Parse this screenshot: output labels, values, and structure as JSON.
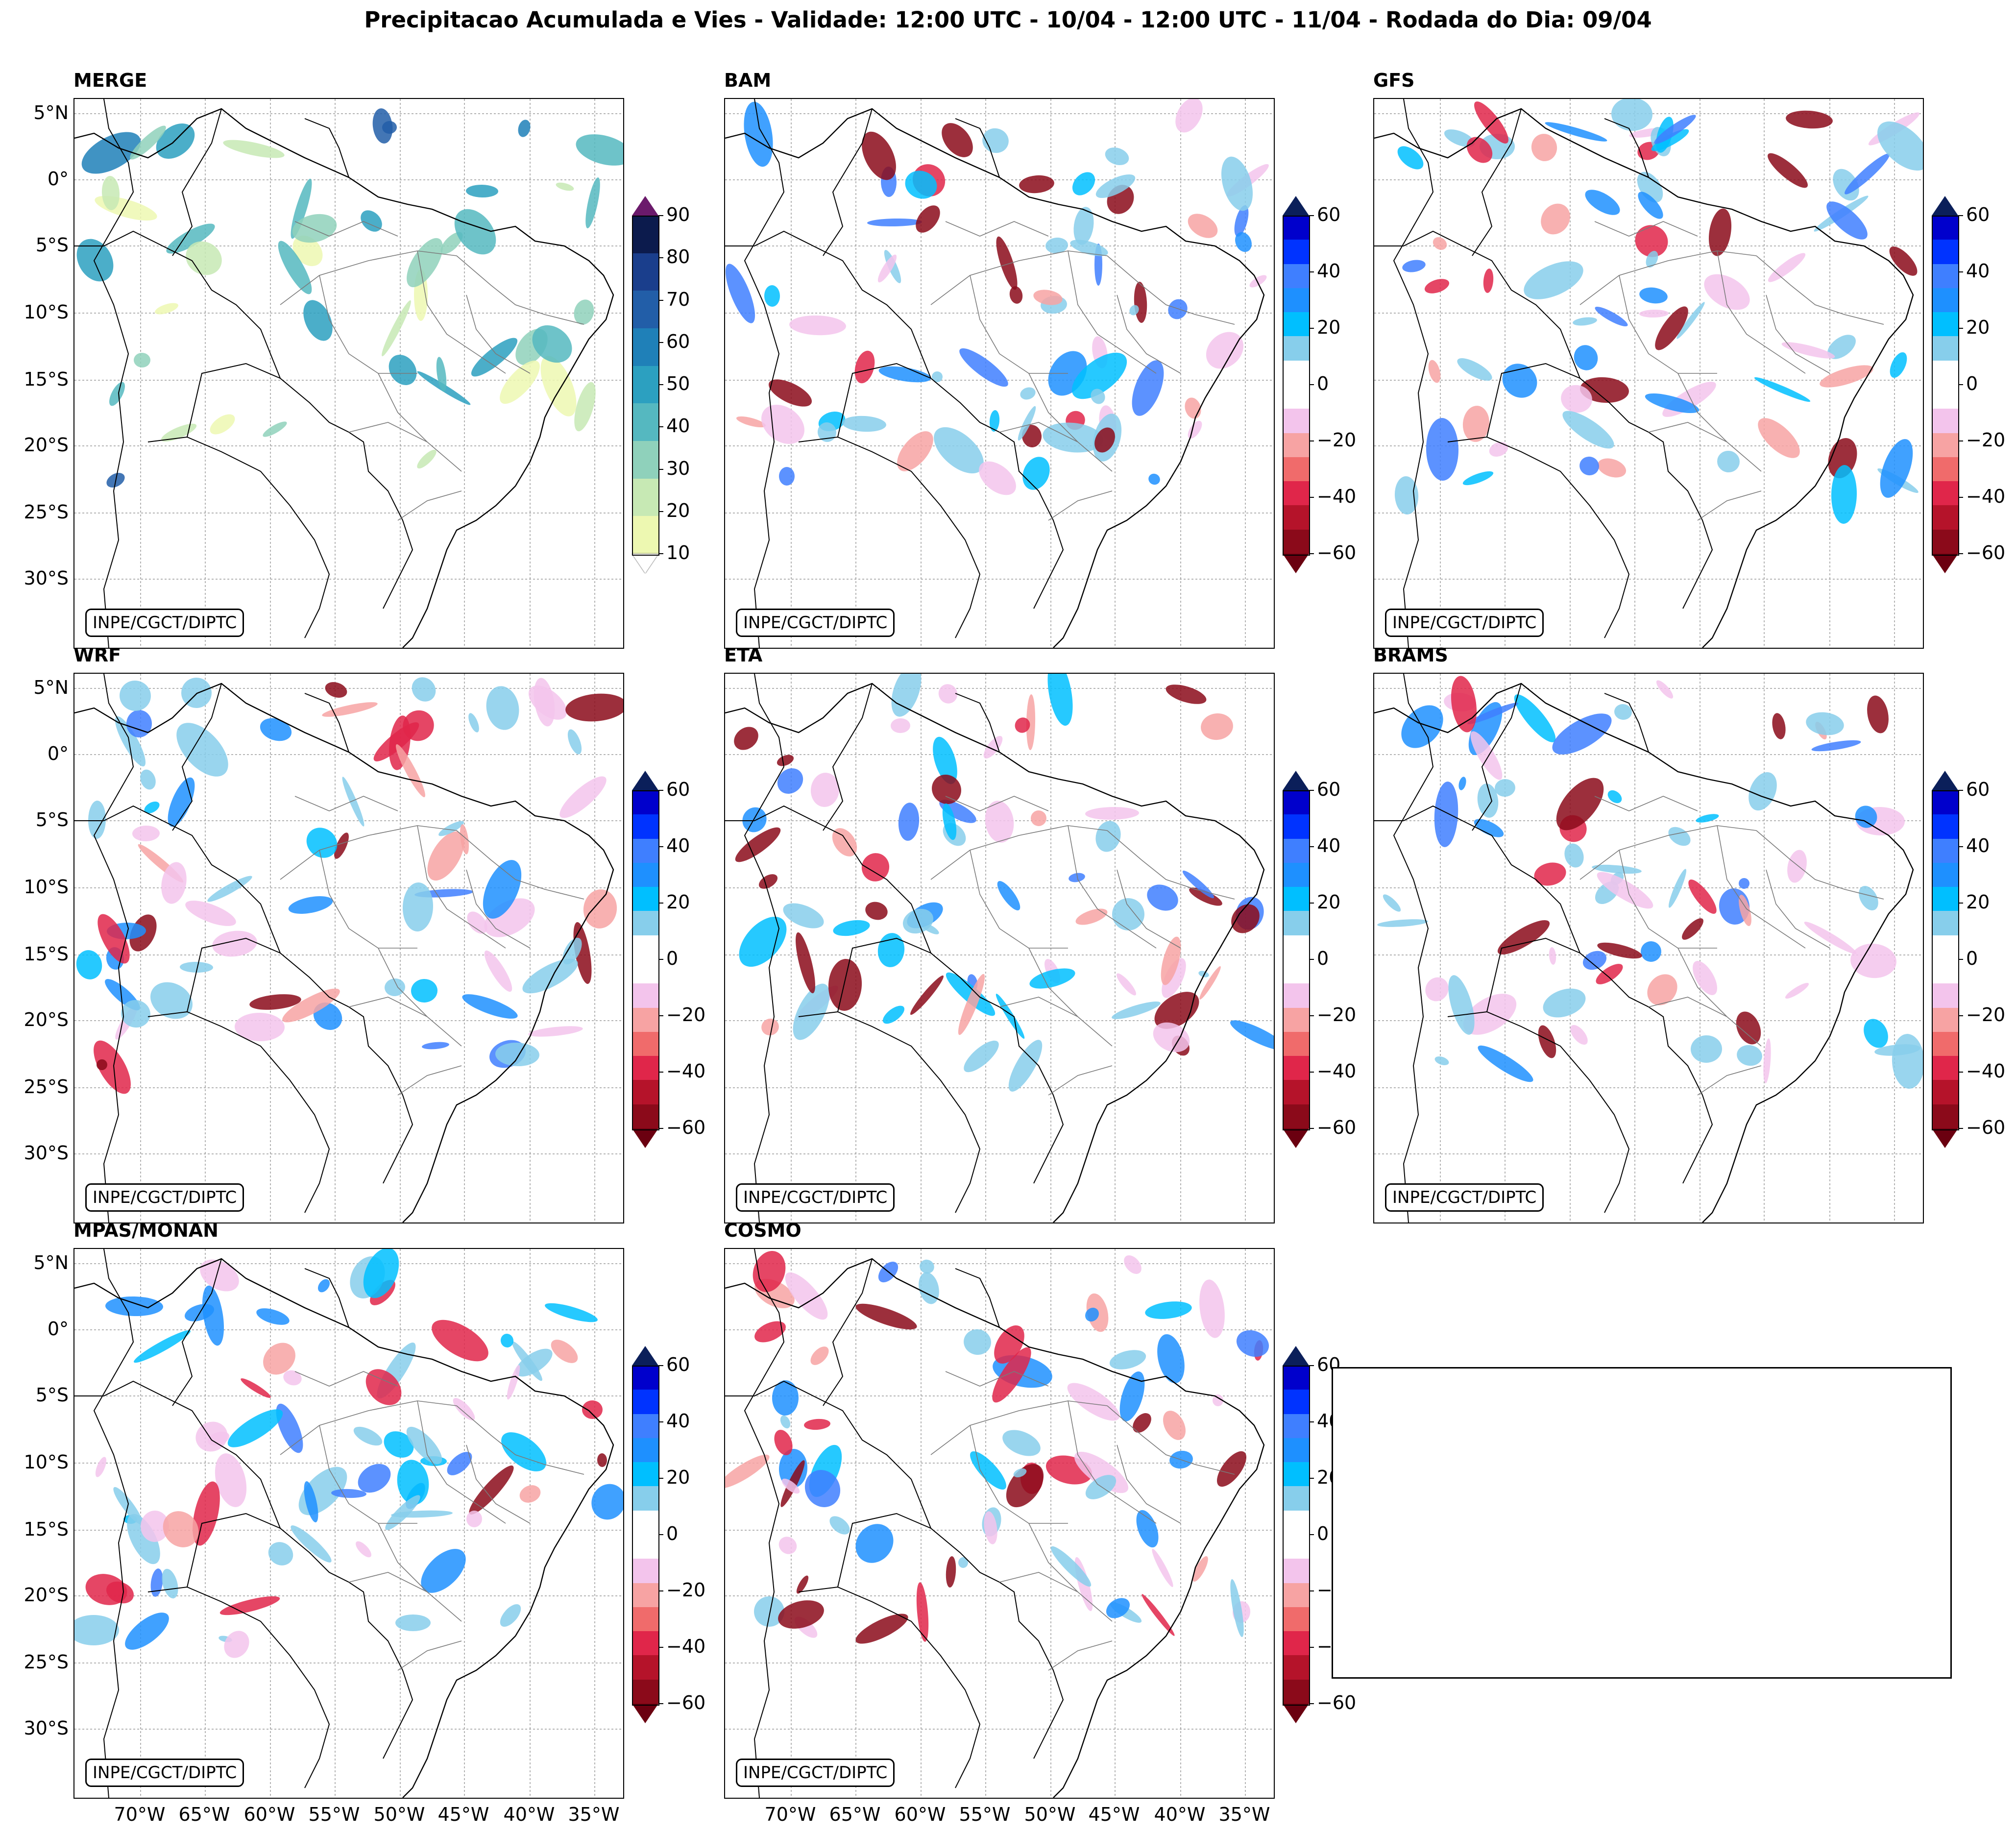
{
  "title": "Precipitacao Acumulada e Vies - Validade: 12:00 UTC - 10/04 - 12:00 UTC - 11/04 - Rodada do Dia: 09/04",
  "credit": "INPE/CGCT/DIPTC",
  "lat_labels": [
    "5°N",
    "0°",
    "5°S",
    "10°S",
    "15°S",
    "20°S",
    "25°S",
    "30°S"
  ],
  "lon_labels": [
    "70°W",
    "65°W",
    "60°W",
    "55°W",
    "50°W",
    "45°W",
    "40°W",
    "35°W"
  ],
  "panels": [
    {
      "name": "MERGE",
      "type": "precip"
    },
    {
      "name": "BAM",
      "type": "bias"
    },
    {
      "name": "GFS",
      "type": "bias"
    },
    {
      "name": "WRF",
      "type": "bias"
    },
    {
      "name": "ETA",
      "type": "bias"
    },
    {
      "name": "BRAMS",
      "type": "bias"
    },
    {
      "name": "MPAS/MONAN",
      "type": "bias"
    },
    {
      "name": "COSMO",
      "type": "bias"
    }
  ],
  "colorbar_precip": {
    "labels": [
      "90",
      "80",
      "70",
      "60",
      "50",
      "40",
      "30",
      "20",
      "10"
    ],
    "colors": [
      "#0c1b4d",
      "#1a3e8c",
      "#225ea8",
      "#1f80b8",
      "#2ca0c0",
      "#55b8c0",
      "#8fd1bb",
      "#c7e9b4",
      "#edf8b1"
    ],
    "extend_top": "#6b1a6b"
  },
  "colorbar_bias": {
    "labels": [
      "60",
      "40",
      "20",
      "0",
      "−20",
      "−40",
      "−60"
    ],
    "colors": [
      "#0000cc",
      "#0033ff",
      "#3f7fff",
      "#1e90ff",
      "#00bfff",
      "#87ceeb",
      "#ffffff",
      "#ffffff",
      "#f3c4ec",
      "#f7a3a3",
      "#f06b6b",
      "#e0264a",
      "#b5132a",
      "#8b0a1a"
    ],
    "extend_top": "#0b1f5a",
    "extend_bottom": "#6b0010"
  },
  "colors": {
    "border": "#000000",
    "grid": "#9a9a9a",
    "state_lines": "#7a7a7a"
  }
}
